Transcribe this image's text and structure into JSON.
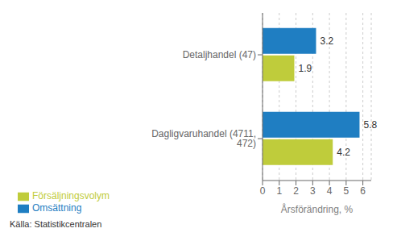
{
  "chart_data": {
    "type": "bar",
    "orientation": "horizontal",
    "categories": [
      "Dagligvaruhandel (4711, 472)",
      "Detaljhandel (47)"
    ],
    "series": [
      {
        "name": "Omsättning",
        "color": "#1F7EC2",
        "values": [
          5.8,
          3.2
        ]
      },
      {
        "name": "Försäljningsvolym",
        "color": "#BFCC3B",
        "values": [
          4.2,
          1.9
        ]
      }
    ],
    "xlabel": "Årsförändring, %",
    "annotations": [
      "Källa: Statistikcentralen"
    ],
    "xlim": [
      0,
      6.5
    ],
    "xticks": [
      0,
      1,
      2,
      3,
      4,
      5,
      6
    ],
    "grid": true,
    "legend": "lower left",
    "data_labels": true
  }
}
